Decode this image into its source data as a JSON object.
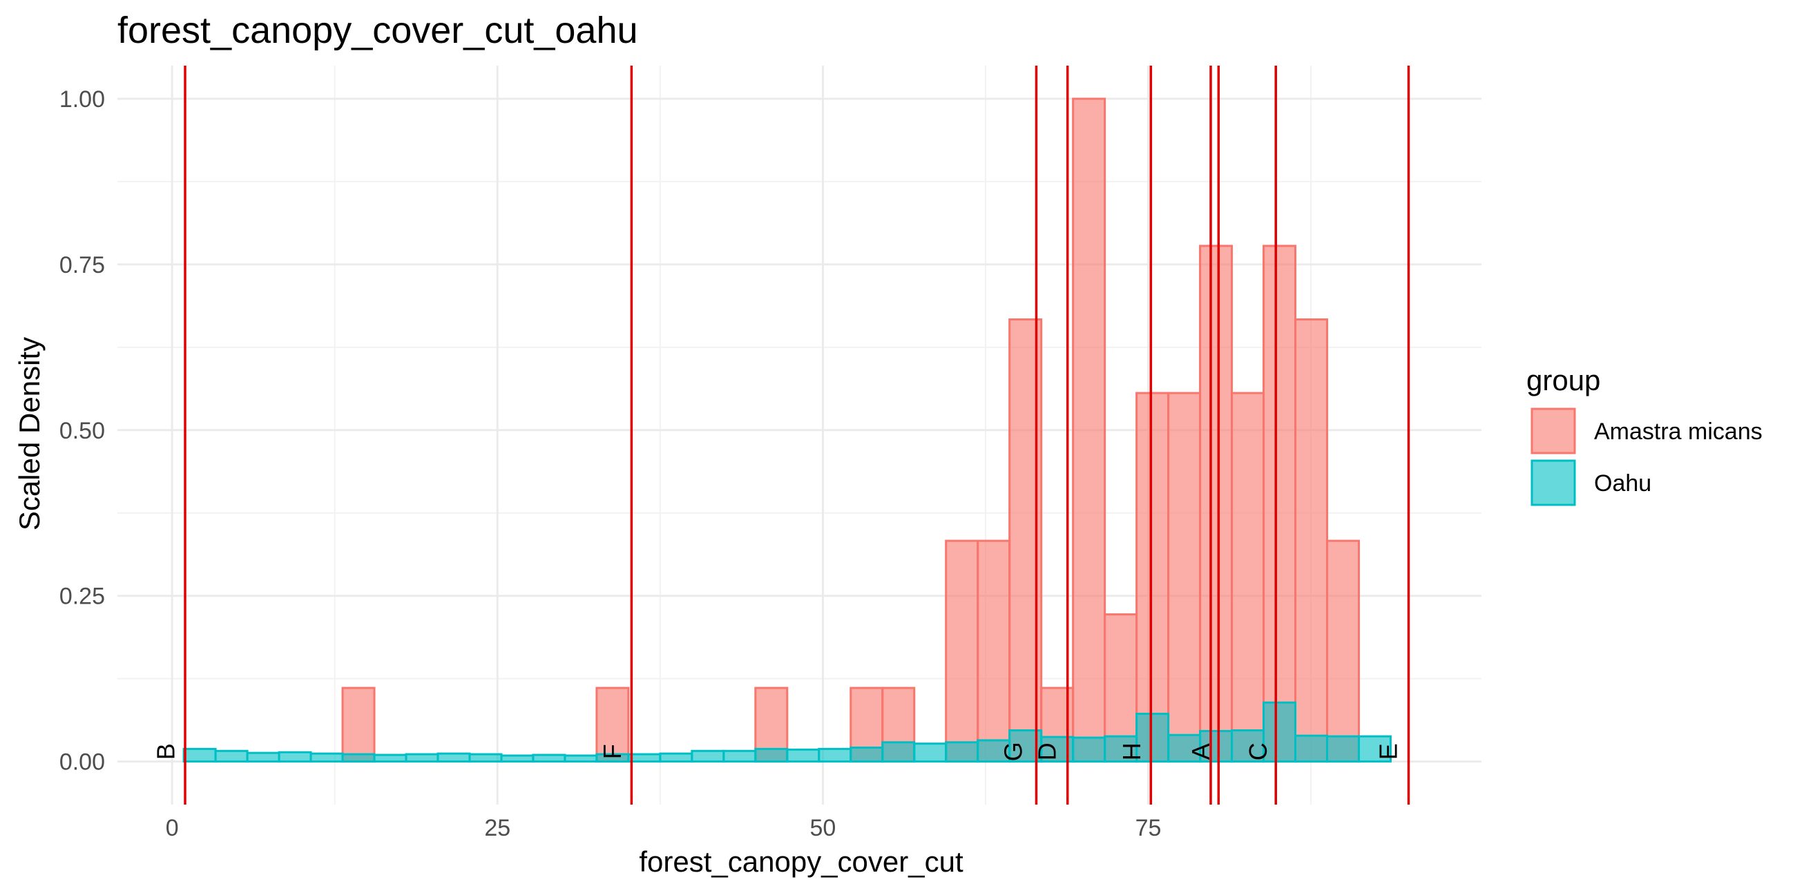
{
  "chart_data": {
    "type": "bar",
    "title": "forest_canopy_cover_cut_oahu",
    "xlabel": "forest_canopy_cover_cut",
    "ylabel": "Scaled Density",
    "xlim": [
      -4.2,
      100.6
    ],
    "ylim": [
      -0.065,
      1.05
    ],
    "x_ticks": [
      0,
      25,
      50,
      75
    ],
    "x_tick_labels": [
      "0",
      "25",
      "50",
      "75"
    ],
    "y_ticks": [
      0,
      0.25,
      0.5,
      0.75,
      1.0
    ],
    "y_tick_labels": [
      "0.00",
      "0.25",
      "0.50",
      "0.75",
      "1.00"
    ],
    "grid": true,
    "bin_width": 2.44,
    "bin_start": 0.9,
    "series": [
      {
        "name": "Amastra micans",
        "fill": "#F8766D",
        "stroke": "#F8766D",
        "values": [
          0,
          0,
          0,
          0,
          0,
          0.111,
          0,
          0,
          0,
          0,
          0,
          0,
          0,
          0.111,
          0,
          0,
          0,
          0,
          0.111,
          0,
          0,
          0.111,
          0.111,
          0,
          0.333,
          0.333,
          0.667,
          0.111,
          1.0,
          0.222,
          0.556,
          0.556,
          0.778,
          0.556,
          0.778,
          0.667,
          0.333
        ]
      },
      {
        "name": "Oahu",
        "fill": "#00BFC4",
        "stroke": "#00BFC4",
        "values": [
          0.019,
          0.016,
          0.013,
          0.014,
          0.012,
          0.011,
          0.01,
          0.011,
          0.012,
          0.011,
          0.009,
          0.01,
          0.009,
          0.011,
          0.011,
          0.012,
          0.016,
          0.016,
          0.019,
          0.018,
          0.019,
          0.021,
          0.029,
          0.027,
          0.029,
          0.032,
          0.047,
          0.037,
          0.036,
          0.038,
          0.072,
          0.04,
          0.046,
          0.047,
          0.089,
          0.039,
          0.038,
          0.038
        ]
      }
    ],
    "reference_lines": {
      "color": "#E00000",
      "values": [
        1.0,
        35.3,
        66.4,
        68.8,
        75.2,
        79.8,
        80.4,
        84.8,
        95.0
      ]
    },
    "marker_labels": [
      {
        "text": "B",
        "x": -0.5
      },
      {
        "text": "F",
        "x": 33.8
      },
      {
        "text": "G",
        "x": 64.6
      },
      {
        "text": "D",
        "x": 67.2
      },
      {
        "text": "H",
        "x": 73.7
      },
      {
        "text": "A",
        "x": 79.0
      },
      {
        "text": "C",
        "x": 83.4
      },
      {
        "text": "E",
        "x": 93.4
      }
    ],
    "legend": {
      "title": "group",
      "position": "right",
      "entries": [
        "Amastra micans",
        "Oahu"
      ]
    }
  }
}
